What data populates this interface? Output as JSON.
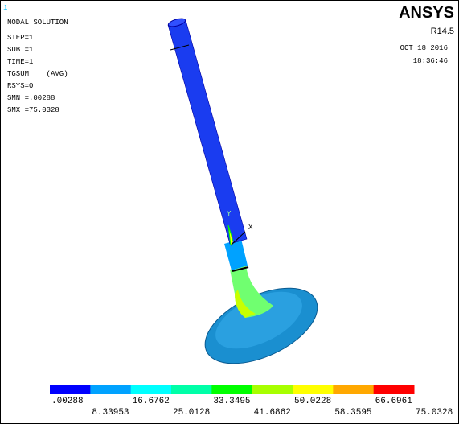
{
  "corner_id": "1",
  "title": "NODAL SOLUTION",
  "info": [
    "STEP=1",
    "SUB =1",
    "TIME=1",
    "TGSUM    (AVG)",
    "RSYS=0",
    "SMN =.00288",
    "SMX =75.0328"
  ],
  "logo": "ANSYS",
  "version": "R14.5",
  "date": "OCT 18 2016",
  "time": "18:36:46",
  "axes": {
    "y": "Y",
    "x": "X"
  },
  "legend": {
    "colors": [
      "#0000ff",
      "#00a2ff",
      "#00ffff",
      "#00ffa8",
      "#00ff00",
      "#a8ff00",
      "#ffff00",
      "#ffa800",
      "#ff0000"
    ],
    "labels": [
      ".00288",
      "8.33953",
      "16.6762",
      "25.0128",
      "33.3495",
      "41.6862",
      "50.0228",
      "58.3595",
      "66.6961",
      "75.0328"
    ]
  }
}
